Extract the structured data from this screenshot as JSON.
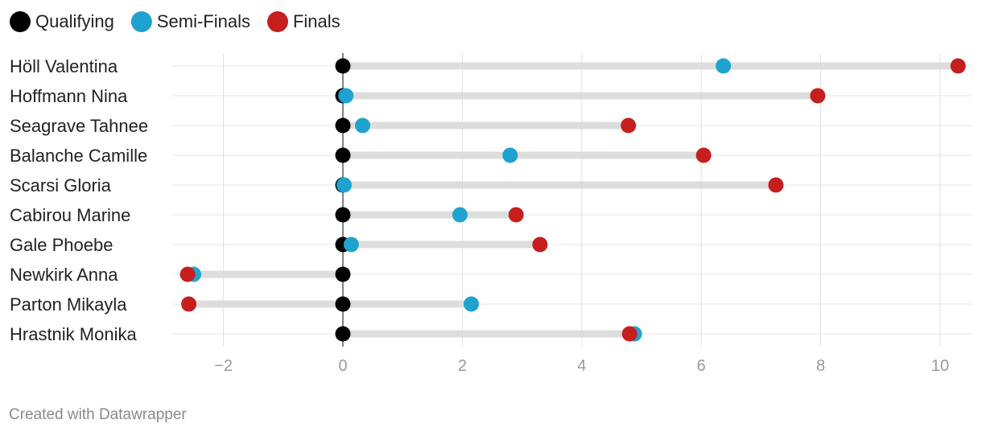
{
  "chart_data": {
    "type": "dot-range",
    "legend": [
      {
        "key": "qualifying",
        "label": "Qualifying",
        "color": "#000000"
      },
      {
        "key": "semi_finals",
        "label": "Semi-Finals",
        "color": "#1fa2d0"
      },
      {
        "key": "finals",
        "label": "Finals",
        "color": "#c71e1e"
      }
    ],
    "rows": [
      {
        "name": "Höll Valentina",
        "qualifying": 0,
        "semi_finals": 6.37,
        "finals": 10.3
      },
      {
        "name": "Hoffmann Nina",
        "qualifying": 0,
        "semi_finals": 0.05,
        "finals": 7.95
      },
      {
        "name": "Seagrave Tahnee",
        "qualifying": 0,
        "semi_finals": 0.33,
        "finals": 4.78
      },
      {
        "name": "Balanche Camille",
        "qualifying": 0,
        "semi_finals": 2.8,
        "finals": 6.04
      },
      {
        "name": "Scarsi Gloria",
        "qualifying": 0,
        "semi_finals": 0.02,
        "finals": 7.25
      },
      {
        "name": "Cabirou Marine",
        "qualifying": 0,
        "semi_finals": 1.96,
        "finals": 2.9
      },
      {
        "name": "Gale Phoebe",
        "qualifying": 0,
        "semi_finals": 0.14,
        "finals": 3.3
      },
      {
        "name": "Newkirk Anna",
        "qualifying": 0,
        "semi_finals": -2.5,
        "finals": -2.6
      },
      {
        "name": "Parton Mikayla",
        "qualifying": 0,
        "semi_finals": 2.15,
        "finals": -2.58
      },
      {
        "name": "Hrastnik Monika",
        "qualifying": 0,
        "semi_finals": 4.88,
        "finals": 4.8
      }
    ],
    "x_ticks": [
      -2,
      0,
      2,
      4,
      6,
      8,
      10
    ],
    "x_tick_labels": [
      "−2",
      "0",
      "2",
      "4",
      "6",
      "8",
      "10"
    ],
    "xlim": [
      -2.85,
      10.5
    ],
    "grid": true
  },
  "footer": "Created with Datawrapper"
}
